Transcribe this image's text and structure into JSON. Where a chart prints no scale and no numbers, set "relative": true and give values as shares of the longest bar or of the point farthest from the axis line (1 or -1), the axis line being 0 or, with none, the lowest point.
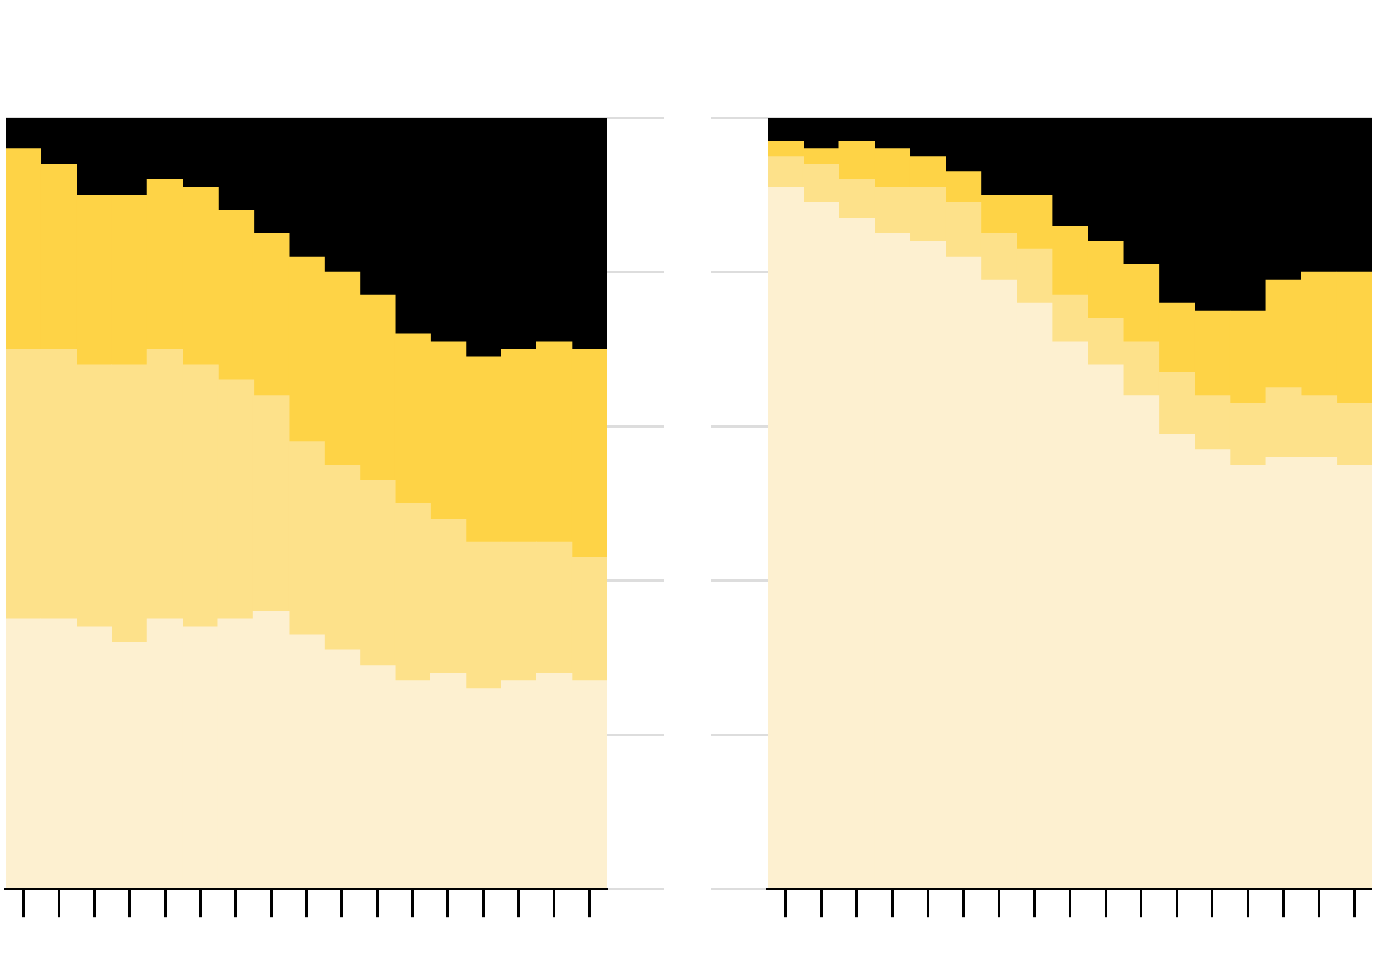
{
  "chart_data": [
    {
      "type": "bar",
      "stacked": true,
      "relative": true,
      "grid": "y",
      "legend": false,
      "categories": [
        null,
        null,
        null,
        null,
        null,
        null,
        null,
        null,
        null,
        null,
        null,
        null,
        null,
        null,
        null,
        null,
        null
      ],
      "series": [
        {
          "color": "#fdf0d0",
          "values": [
            0.35,
            0.35,
            0.34,
            0.32,
            0.35,
            0.34,
            0.35,
            0.36,
            0.33,
            0.31,
            0.29,
            0.27,
            0.28,
            0.26,
            0.27,
            0.28,
            0.27
          ]
        },
        {
          "color": "#fde18a",
          "values": [
            0.35,
            0.35,
            0.34,
            0.36,
            0.35,
            0.34,
            0.31,
            0.28,
            0.25,
            0.24,
            0.24,
            0.23,
            0.2,
            0.19,
            0.18,
            0.17,
            0.16
          ]
        },
        {
          "color": "#fed346",
          "values": [
            0.26,
            0.24,
            0.22,
            0.22,
            0.22,
            0.23,
            0.22,
            0.21,
            0.24,
            0.25,
            0.24,
            0.22,
            0.23,
            0.24,
            0.25,
            0.26,
            0.27
          ]
        },
        {
          "color": "#000000",
          "values": [
            0.04,
            0.06,
            0.1,
            0.1,
            0.08,
            0.09,
            0.12,
            0.15,
            0.18,
            0.2,
            0.23,
            0.28,
            0.29,
            0.31,
            0.3,
            0.29,
            0.3
          ]
        }
      ]
    },
    {
      "type": "bar",
      "stacked": true,
      "relative": true,
      "grid": "y",
      "legend": false,
      "categories": [
        null,
        null,
        null,
        null,
        null,
        null,
        null,
        null,
        null,
        null,
        null,
        null,
        null,
        null,
        null,
        null,
        null
      ],
      "series": [
        {
          "color": "#fdf0d0",
          "values": [
            0.91,
            0.89,
            0.87,
            0.85,
            0.84,
            0.82,
            0.79,
            0.76,
            0.71,
            0.68,
            0.64,
            0.59,
            0.57,
            0.55,
            0.56,
            0.56,
            0.55
          ]
        },
        {
          "color": "#fde18a",
          "values": [
            0.04,
            0.05,
            0.05,
            0.06,
            0.07,
            0.07,
            0.06,
            0.07,
            0.06,
            0.06,
            0.07,
            0.08,
            0.07,
            0.08,
            0.09,
            0.08,
            0.08
          ]
        },
        {
          "color": "#fed346",
          "values": [
            0.02,
            0.02,
            0.05,
            0.05,
            0.04,
            0.04,
            0.05,
            0.07,
            0.09,
            0.1,
            0.1,
            0.09,
            0.11,
            0.12,
            0.14,
            0.16,
            0.17
          ]
        },
        {
          "color": "#000000",
          "values": [
            0.03,
            0.04,
            0.03,
            0.04,
            0.05,
            0.07,
            0.1,
            0.1,
            0.14,
            0.16,
            0.19,
            0.24,
            0.25,
            0.25,
            0.21,
            0.2,
            0.2
          ]
        }
      ]
    }
  ]
}
